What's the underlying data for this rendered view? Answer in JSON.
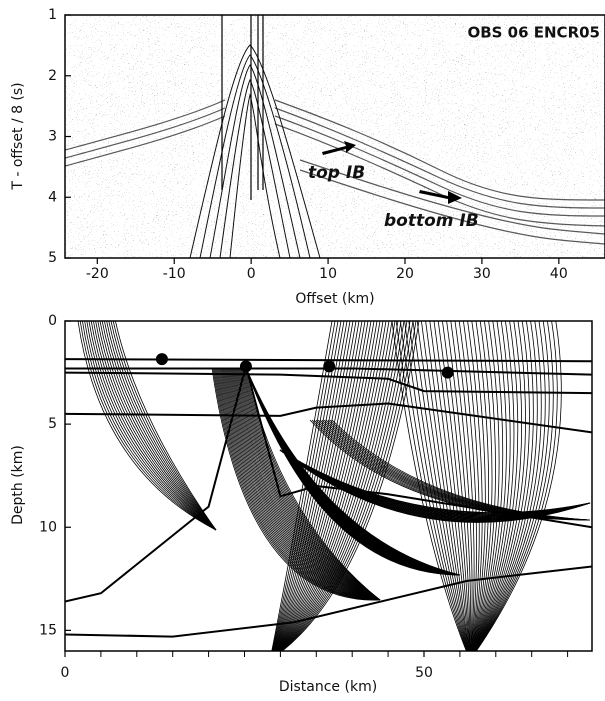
{
  "chart_data": [
    {
      "type": "seismic-section",
      "annotations": [
        "OBS 06 ENCR05",
        "top IB",
        "bottom IB"
      ],
      "x_label": "Offset (km)",
      "y_label": "T - offset / 8 (s)",
      "xlim": [
        -24.2,
        46
      ],
      "xticks": [
        -20,
        -10,
        0,
        10,
        20,
        30,
        40
      ],
      "ylim": [
        5,
        1
      ],
      "yticks": [
        1,
        2,
        3,
        4,
        5
      ]
    },
    {
      "type": "ray-model",
      "x_label": "Distance (km)",
      "y_label": "Depth (km)",
      "xlim": [
        0,
        73.4
      ],
      "xticks": [
        0,
        50
      ],
      "xminorticks": [
        5,
        10,
        15,
        20,
        25,
        30,
        35,
        40,
        45,
        55,
        60,
        65,
        70
      ],
      "ylim": [
        16,
        0
      ],
      "yticks": [
        0,
        5,
        10,
        15
      ],
      "obs": {
        "x": [
          13.5,
          25.2,
          36.8,
          53.3
        ],
        "y": [
          1.85,
          2.2,
          2.2,
          2.5
        ]
      },
      "interfaces": [
        {
          "x": [
            0,
            73.4
          ],
          "y": [
            1.85,
            1.95
          ]
        },
        {
          "x": [
            0,
            20,
            40,
            73.4
          ],
          "y": [
            2.3,
            2.3,
            2.3,
            2.6
          ]
        },
        {
          "x": [
            0,
            30,
            45,
            50,
            73.4
          ],
          "y": [
            2.5,
            2.6,
            2.8,
            3.4,
            3.5
          ]
        },
        {
          "x": [
            0,
            30,
            35,
            45,
            73.4
          ],
          "y": [
            4.5,
            4.6,
            4.2,
            4.0,
            5.4
          ]
        },
        {
          "x": [
            0,
            5,
            20,
            25.2,
            30,
            35,
            45,
            73.4
          ],
          "y": [
            13.6,
            13.2,
            9.0,
            2.2,
            8.5,
            8.0,
            8.4,
            10.0
          ]
        },
        {
          "x": [
            0,
            15,
            32,
            56,
            73.4
          ],
          "y": [
            15.2,
            15.3,
            14.6,
            12.6,
            11.9
          ]
        }
      ]
    }
  ]
}
